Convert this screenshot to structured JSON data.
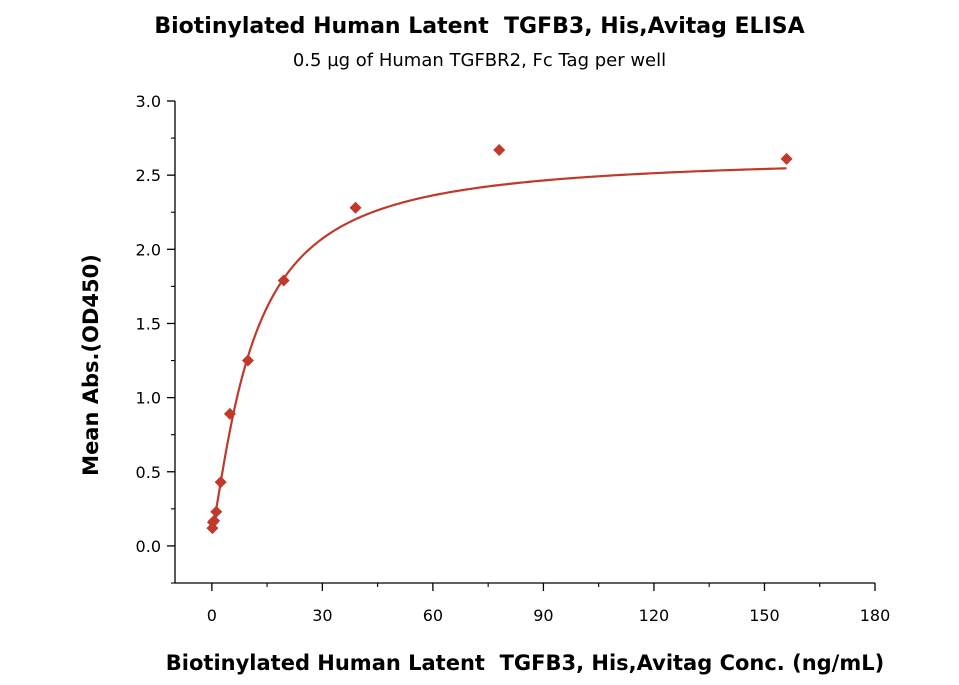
{
  "chart_data": {
    "type": "scatter",
    "title": "Biotinylated Human Latent  TGFB3, His,Avitag ELISA",
    "subtitle": "0.5 µg of Human TGFBR2, Fc Tag per well",
    "xlabel": "Biotinylated Human Latent  TGFB3, His,Avitag Conc. (ng/mL)",
    "ylabel": "Mean Abs.(OD450)",
    "xlim": [
      -10,
      180
    ],
    "ylim": [
      -0.25,
      3.0
    ],
    "x_ticks": [
      0,
      30,
      60,
      90,
      120,
      150,
      180
    ],
    "x_tick_labels": [
      "0",
      "30",
      "60",
      "90",
      "120",
      "150",
      "180"
    ],
    "y_ticks": [
      0.0,
      0.5,
      1.0,
      1.5,
      2.0,
      2.5,
      3.0
    ],
    "y_tick_labels": [
      "0.0",
      "0.5",
      "1.0",
      "1.5",
      "2.0",
      "2.5",
      "3.0"
    ],
    "grid": false,
    "legend": "none",
    "marker": "diamond",
    "color": "#c0392b",
    "series": [
      {
        "x": [
          0.15,
          0.3,
          0.6,
          1.2,
          2.4,
          4.9,
          9.8,
          19.5,
          39,
          78,
          156
        ],
        "y": [
          0.12,
          0.16,
          0.17,
          0.23,
          0.43,
          0.89,
          1.25,
          1.79,
          2.28,
          2.67,
          2.61
        ],
        "fit": "four-parameter logistic fit curve"
      }
    ]
  }
}
